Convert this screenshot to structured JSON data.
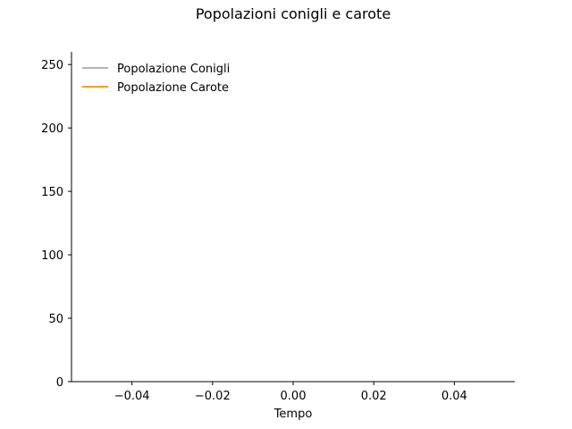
{
  "chart_data": {
    "type": "line",
    "title": "Popolazioni conigli e carote",
    "xlabel": "Tempo",
    "ylabel": "",
    "xlim": [
      -0.055,
      0.055
    ],
    "ylim": [
      0,
      260
    ],
    "xticks": [
      -0.04,
      -0.02,
      0.0,
      0.02,
      0.04
    ],
    "xtick_labels": [
      "−0.04",
      "−0.02",
      "0.00",
      "0.02",
      "0.04"
    ],
    "yticks": [
      0,
      50,
      100,
      150,
      200,
      250
    ],
    "ytick_labels": [
      "0",
      "50",
      "100",
      "150",
      "200",
      "250"
    ],
    "grid": false,
    "legend_position": "top-left",
    "series": [
      {
        "name": "Popolazione Conigli",
        "color": "#aaaaaa",
        "x": [],
        "y": []
      },
      {
        "name": "Popolazione Carote",
        "color": "#ff8c00",
        "x": [],
        "y": []
      }
    ]
  }
}
